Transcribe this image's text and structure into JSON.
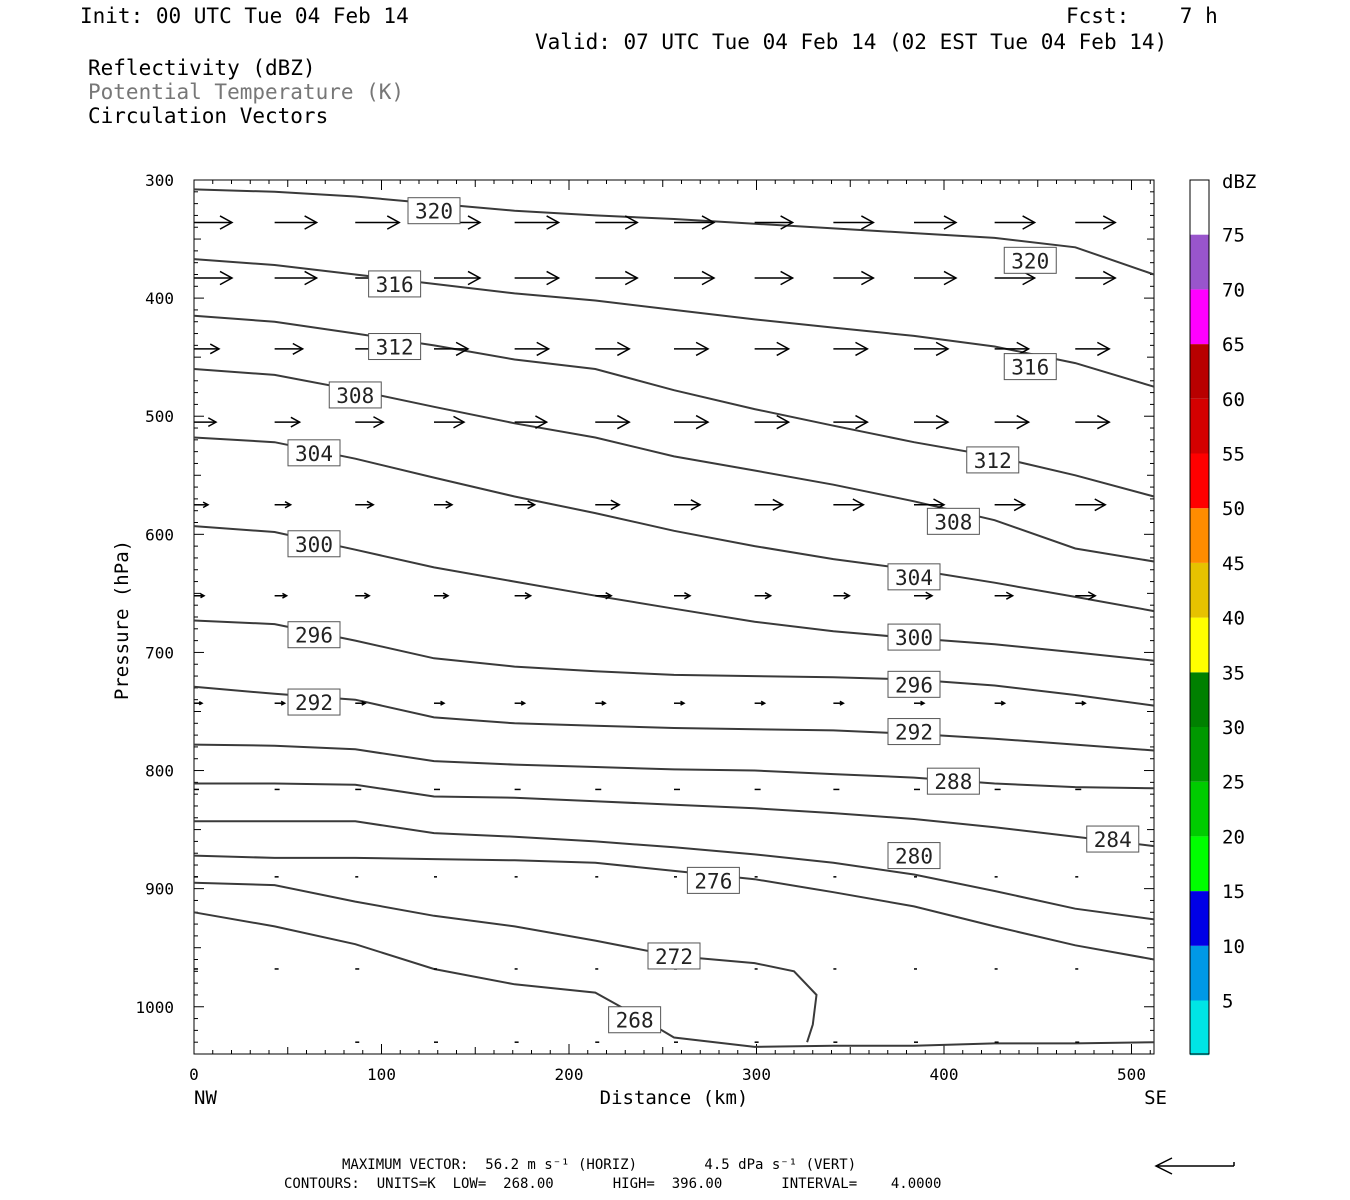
{
  "header": {
    "init": "Init: 00 UTC Tue 04 Feb 14",
    "fcst": "Fcst:    7 h",
    "valid": "Valid: 07 UTC Tue 04 Feb 14 (02 EST Tue 04 Feb 14)",
    "fields": [
      "Reflectivity (dBZ)",
      "Potential Temperature (K)",
      "Circulation Vectors"
    ]
  },
  "footer": {
    "max_vector": "MAXIMUM VECTOR:  56.2 m s⁻¹ (HORIZ)        4.5 dPa s⁻¹ (VERT)",
    "contours": "CONTOURS:  UNITS=K  LOW=  268.00       HIGH=  396.00       INTERVAL=    4.0000"
  },
  "colors": {
    "contour": "#3a3a3a",
    "colorbar": [
      "#00e5e5",
      "#0099e6",
      "#0000e6",
      "#00ff00",
      "#00cc00",
      "#009900",
      "#008000",
      "#ffff00",
      "#e6c200",
      "#ff8c00",
      "#ff0000",
      "#d40000",
      "#b80000",
      "#ff00ff",
      "#9955cc"
    ]
  },
  "chart_data": {
    "type": "contour",
    "title": "",
    "xlabel": "Distance (km)",
    "ylabel": "Pressure (hPa)",
    "xlim": [
      0,
      512
    ],
    "ylim": [
      1040,
      300
    ],
    "x_ticks": [
      "0",
      "100",
      "200",
      "300",
      "400",
      "500"
    ],
    "y_ticks": [
      "300",
      "400",
      "500",
      "600",
      "700",
      "800",
      "900",
      "1000"
    ],
    "x_end_labels": {
      "left": "NW",
      "right": "SE"
    },
    "colorbar": {
      "title": "dBZ",
      "levels": [
        "5",
        "10",
        "15",
        "20",
        "25",
        "30",
        "35",
        "40",
        "45",
        "50",
        "55",
        "60",
        "65",
        "70",
        "75"
      ]
    },
    "contours": [
      {
        "value": 320,
        "points": [
          [
            0,
            308
          ],
          [
            43,
            310
          ],
          [
            86,
            314
          ],
          [
            128,
            320
          ],
          [
            171,
            326
          ],
          [
            214,
            330
          ],
          [
            256,
            333
          ],
          [
            299,
            337
          ],
          [
            341,
            341
          ],
          [
            384,
            345
          ],
          [
            427,
            349
          ],
          [
            470,
            357
          ],
          [
            512,
            380
          ]
        ]
      },
      {
        "value": 316,
        "points": [
          [
            0,
            367
          ],
          [
            43,
            372
          ],
          [
            86,
            380
          ],
          [
            128,
            388
          ],
          [
            171,
            396
          ],
          [
            214,
            402
          ],
          [
            256,
            410
          ],
          [
            299,
            418
          ],
          [
            341,
            425
          ],
          [
            384,
            432
          ],
          [
            427,
            441
          ],
          [
            470,
            455
          ],
          [
            512,
            475
          ]
        ]
      },
      {
        "value": 312,
        "points": [
          [
            0,
            415
          ],
          [
            43,
            420
          ],
          [
            86,
            430
          ],
          [
            128,
            440
          ],
          [
            171,
            452
          ],
          [
            214,
            460
          ],
          [
            256,
            478
          ],
          [
            299,
            494
          ],
          [
            341,
            508
          ],
          [
            384,
            522
          ],
          [
            427,
            534
          ],
          [
            470,
            550
          ],
          [
            512,
            568
          ]
        ]
      },
      {
        "value": 308,
        "points": [
          [
            0,
            460
          ],
          [
            43,
            465
          ],
          [
            86,
            478
          ],
          [
            128,
            492
          ],
          [
            171,
            506
          ],
          [
            214,
            518
          ],
          [
            256,
            534
          ],
          [
            299,
            546
          ],
          [
            341,
            558
          ],
          [
            384,
            572
          ],
          [
            427,
            588
          ],
          [
            470,
            612
          ],
          [
            512,
            623
          ]
        ]
      },
      {
        "value": 304,
        "points": [
          [
            0,
            518
          ],
          [
            43,
            522
          ],
          [
            86,
            536
          ],
          [
            128,
            552
          ],
          [
            171,
            568
          ],
          [
            214,
            582
          ],
          [
            256,
            597
          ],
          [
            299,
            610
          ],
          [
            341,
            621
          ],
          [
            384,
            630
          ],
          [
            427,
            641
          ],
          [
            470,
            653
          ],
          [
            512,
            665
          ]
        ]
      },
      {
        "value": 300,
        "points": [
          [
            0,
            593
          ],
          [
            43,
            598
          ],
          [
            86,
            613
          ],
          [
            128,
            628
          ],
          [
            171,
            640
          ],
          [
            214,
            652
          ],
          [
            256,
            663
          ],
          [
            299,
            674
          ],
          [
            341,
            682
          ],
          [
            384,
            688
          ],
          [
            427,
            693
          ],
          [
            470,
            700
          ],
          [
            512,
            707
          ]
        ]
      },
      {
        "value": 296,
        "points": [
          [
            0,
            673
          ],
          [
            43,
            676
          ],
          [
            86,
            690
          ],
          [
            128,
            705
          ],
          [
            171,
            712
          ],
          [
            214,
            716
          ],
          [
            256,
            719
          ],
          [
            299,
            720
          ],
          [
            341,
            721
          ],
          [
            384,
            723
          ],
          [
            427,
            728
          ],
          [
            470,
            736
          ],
          [
            512,
            745
          ]
        ]
      },
      {
        "value": 292,
        "points": [
          [
            0,
            729
          ],
          [
            43,
            735
          ],
          [
            86,
            740
          ],
          [
            128,
            755
          ],
          [
            171,
            760
          ],
          [
            214,
            762
          ],
          [
            256,
            764
          ],
          [
            299,
            765
          ],
          [
            341,
            766
          ],
          [
            384,
            769
          ],
          [
            427,
            773
          ],
          [
            470,
            778
          ],
          [
            512,
            783
          ]
        ]
      },
      {
        "value": 288,
        "points": [
          [
            0,
            778
          ],
          [
            43,
            779
          ],
          [
            86,
            782
          ],
          [
            128,
            792
          ],
          [
            171,
            795
          ],
          [
            214,
            797
          ],
          [
            256,
            799
          ],
          [
            299,
            800
          ],
          [
            341,
            803
          ],
          [
            384,
            806
          ],
          [
            427,
            811
          ],
          [
            470,
            814
          ],
          [
            512,
            815
          ]
        ]
      },
      {
        "value": 284,
        "points": [
          [
            0,
            811
          ],
          [
            43,
            811
          ],
          [
            86,
            812
          ],
          [
            128,
            822
          ],
          [
            171,
            823
          ],
          [
            214,
            826
          ],
          [
            256,
            829
          ],
          [
            299,
            832
          ],
          [
            341,
            836
          ],
          [
            384,
            841
          ],
          [
            427,
            848
          ],
          [
            470,
            856
          ],
          [
            512,
            864
          ]
        ]
      },
      {
        "value": 280,
        "points": [
          [
            0,
            843
          ],
          [
            43,
            843
          ],
          [
            86,
            843
          ],
          [
            128,
            853
          ],
          [
            171,
            856
          ],
          [
            214,
            860
          ],
          [
            256,
            865
          ],
          [
            299,
            871
          ],
          [
            341,
            878
          ],
          [
            384,
            888
          ],
          [
            427,
            902
          ],
          [
            470,
            917
          ],
          [
            512,
            926
          ]
        ]
      },
      {
        "value": 276,
        "points": [
          [
            0,
            872
          ],
          [
            43,
            874
          ],
          [
            86,
            874
          ],
          [
            128,
            875
          ],
          [
            171,
            876
          ],
          [
            214,
            878
          ],
          [
            256,
            885
          ],
          [
            299,
            892
          ],
          [
            341,
            903
          ],
          [
            384,
            915
          ],
          [
            427,
            932
          ],
          [
            470,
            948
          ],
          [
            512,
            960
          ]
        ]
      },
      {
        "value": 272,
        "points": [
          [
            0,
            895
          ],
          [
            43,
            897
          ],
          [
            86,
            911
          ],
          [
            128,
            923
          ],
          [
            171,
            932
          ],
          [
            214,
            944
          ],
          [
            256,
            957
          ],
          [
            299,
            963
          ],
          [
            320,
            970
          ],
          [
            332,
            990
          ],
          [
            330,
            1015
          ],
          [
            327,
            1030
          ]
        ]
      },
      {
        "value": 268,
        "points": [
          [
            0,
            920
          ],
          [
            43,
            932
          ],
          [
            86,
            947
          ],
          [
            128,
            968
          ],
          [
            171,
            981
          ],
          [
            214,
            988
          ],
          [
            240,
            1011
          ],
          [
            256,
            1026
          ],
          [
            299,
            1034
          ],
          [
            341,
            1033
          ],
          [
            384,
            1033
          ],
          [
            427,
            1031
          ],
          [
            470,
            1031
          ],
          [
            512,
            1030
          ]
        ]
      }
    ],
    "contour_label_positions": [
      {
        "value": 320,
        "x": 128,
        "y": 326
      },
      {
        "value": 320,
        "x": 446,
        "y": 368
      },
      {
        "value": 316,
        "x": 107,
        "y": 388
      },
      {
        "value": 316,
        "x": 446,
        "y": 458
      },
      {
        "value": 312,
        "x": 107,
        "y": 441
      },
      {
        "value": 312,
        "x": 426,
        "y": 537
      },
      {
        "value": 308,
        "x": 86,
        "y": 482
      },
      {
        "value": 308,
        "x": 405,
        "y": 589
      },
      {
        "value": 304,
        "x": 64,
        "y": 531
      },
      {
        "value": 304,
        "x": 384,
        "y": 636
      },
      {
        "value": 300,
        "x": 64,
        "y": 608
      },
      {
        "value": 300,
        "x": 384,
        "y": 687
      },
      {
        "value": 296,
        "x": 64,
        "y": 685
      },
      {
        "value": 296,
        "x": 384,
        "y": 727
      },
      {
        "value": 292,
        "x": 64,
        "y": 742
      },
      {
        "value": 292,
        "x": 384,
        "y": 767
      },
      {
        "value": 288,
        "x": 405,
        "y": 809
      },
      {
        "value": 284,
        "x": 490,
        "y": 858
      },
      {
        "value": 280,
        "x": 384,
        "y": 872
      },
      {
        "value": 276,
        "x": 277,
        "y": 893
      },
      {
        "value": 272,
        "x": 256,
        "y": 957
      },
      {
        "value": 268,
        "x": 235,
        "y": 1011
      }
    ],
    "vector_rows": [
      {
        "p": 336,
        "x": [
          0,
          43,
          86,
          128,
          171,
          214,
          256,
          299,
          341,
          384,
          427,
          470
        ],
        "len": [
          38,
          42,
          44,
          46,
          44,
          42,
          40,
          38,
          40,
          42,
          40,
          40
        ]
      },
      {
        "p": 383,
        "x": [
          0,
          43,
          86,
          128,
          171,
          214,
          256,
          299,
          341,
          384,
          427,
          470
        ],
        "len": [
          38,
          42,
          44,
          46,
          44,
          42,
          40,
          38,
          40,
          42,
          40,
          40
        ]
      },
      {
        "p": 443,
        "x": [
          0,
          43,
          86,
          128,
          171,
          214,
          256,
          299,
          341,
          384,
          427,
          470
        ],
        "len": [
          25,
          28,
          30,
          34,
          34,
          34,
          34,
          34,
          34,
          34,
          34,
          34
        ]
      },
      {
        "p": 505,
        "x": [
          0,
          43,
          86,
          128,
          171,
          214,
          256,
          299,
          341,
          384,
          427,
          470
        ],
        "len": [
          22,
          25,
          28,
          30,
          32,
          34,
          34,
          34,
          34,
          34,
          34,
          34
        ]
      },
      {
        "p": 575,
        "x": [
          0,
          43,
          86,
          128,
          171,
          214,
          256,
          299,
          341,
          384,
          427,
          470
        ],
        "len": [
          14,
          16,
          18,
          18,
          20,
          24,
          26,
          28,
          30,
          30,
          30,
          30
        ]
      },
      {
        "p": 652,
        "x": [
          0,
          43,
          86,
          128,
          171,
          214,
          256,
          299,
          341,
          384,
          427,
          470
        ],
        "len": [
          10,
          12,
          14,
          14,
          16,
          16,
          16,
          16,
          16,
          18,
          18,
          20
        ]
      },
      {
        "p": 743,
        "x": [
          0,
          43,
          86,
          128,
          171,
          214,
          256,
          299,
          341,
          384,
          427,
          470
        ],
        "len": [
          8,
          10,
          10,
          10,
          10,
          10,
          10,
          10,
          10,
          10,
          10,
          10
        ]
      },
      {
        "p": 816,
        "x": [
          0,
          43,
          86,
          128,
          171,
          214,
          256,
          299,
          341,
          384,
          427,
          470
        ],
        "len": [
          5,
          5,
          6,
          6,
          6,
          6,
          6,
          6,
          6,
          6,
          6,
          6
        ]
      },
      {
        "p": 890,
        "x": [
          0,
          43,
          86,
          128,
          171,
          214,
          256,
          299,
          341,
          384,
          427,
          470
        ],
        "len": [
          4,
          4,
          3,
          3,
          3,
          3,
          3,
          3,
          3,
          3,
          3,
          3
        ]
      },
      {
        "p": 968,
        "x": [
          0,
          43,
          86,
          128,
          171,
          214,
          256,
          299,
          341,
          384,
          427,
          470
        ],
        "len": [
          4,
          4,
          4,
          3,
          3,
          3,
          3,
          3,
          3,
          3,
          3,
          3
        ]
      },
      {
        "p": 1030,
        "x": [
          0,
          43,
          86,
          128,
          171,
          214,
          256,
          299,
          341,
          384,
          427,
          470
        ],
        "len": [
          0,
          0,
          4,
          4,
          4,
          4,
          4,
          4,
          4,
          4,
          4,
          4
        ]
      }
    ],
    "reference_vector_speed": "56.2 m s⁻¹"
  }
}
